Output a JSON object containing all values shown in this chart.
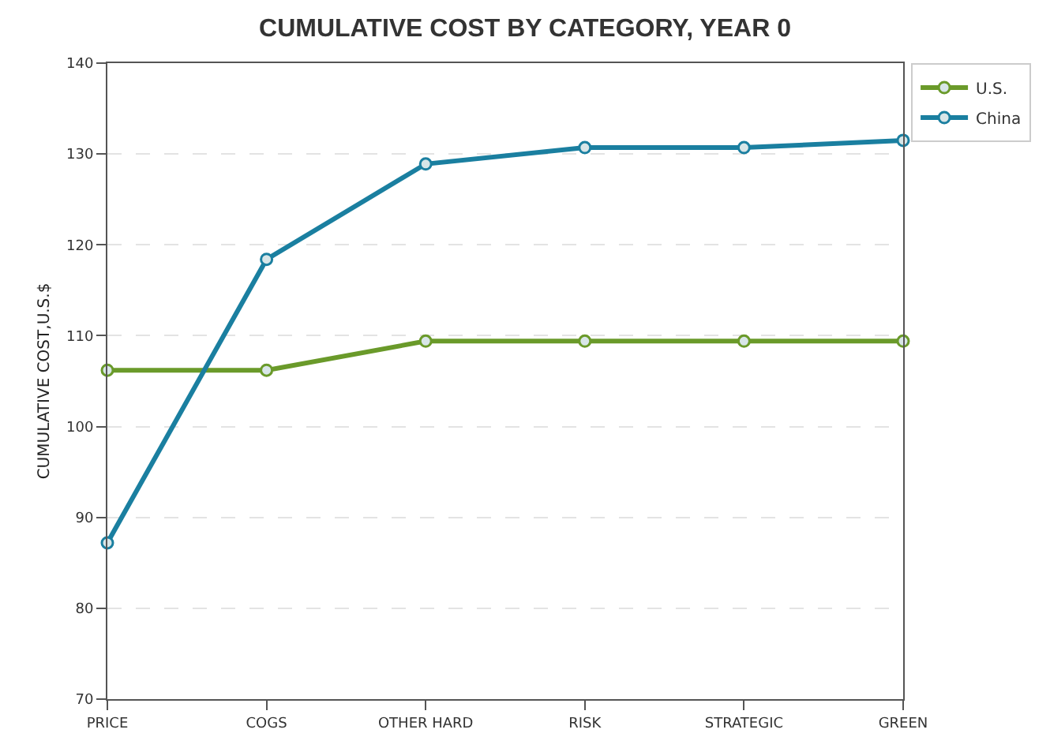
{
  "chart_data": {
    "type": "line",
    "title": "CUMULATIVE COST BY CATEGORY, YEAR 0",
    "ylabel": "CUMULATIVE COST,U.S.$",
    "categories": [
      "PRICE",
      "COGS",
      "OTHER HARD",
      "RISK",
      "STRATEGIC",
      "GREEN"
    ],
    "series": [
      {
        "name": "U.S.",
        "color": "#6a9a2a",
        "values": [
          106.2,
          106.2,
          109.4,
          109.4,
          109.4,
          109.4
        ]
      },
      {
        "name": "China",
        "color": "#1a7fa0",
        "values": [
          87.2,
          118.4,
          128.9,
          130.7,
          130.7,
          131.5
        ]
      }
    ],
    "ylim": [
      70,
      140
    ],
    "yticks": [
      70,
      80,
      90,
      100,
      110,
      120,
      130,
      140
    ],
    "grid": "y",
    "legend": "top right",
    "marker": "circle",
    "line_style": "solid"
  }
}
